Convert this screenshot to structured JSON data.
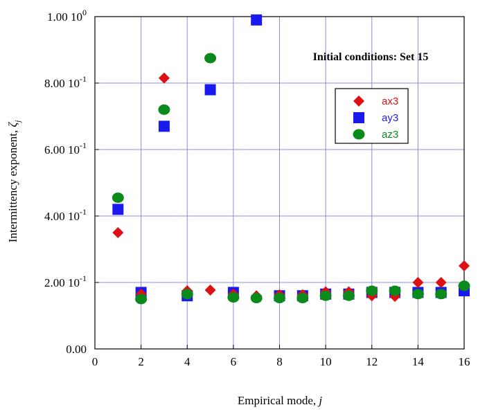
{
  "colors": {
    "ax3": "#dd1111",
    "ay3": "#1a1aee",
    "az3": "#0a8a1a",
    "grid": "#8c8ce6",
    "frame": "#000000"
  },
  "chart_data": {
    "type": "scatter",
    "title": "",
    "xlabel_text": "Empirical mode, ",
    "xlabel_var": "j",
    "ylabel_text": "Intermittency exponent, ",
    "ylabel_var": "ζ",
    "ylabel_sub": "j",
    "annotation": "Initial conditions: Set 15",
    "xlim": [
      0,
      16
    ],
    "ylim": [
      0,
      1.0
    ],
    "grid": true,
    "legend_position": "right",
    "x_ticks": [
      0,
      2,
      4,
      6,
      8,
      10,
      12,
      14,
      16
    ],
    "x_tick_labels": [
      "0",
      "2",
      "4",
      "6",
      "8",
      "10",
      "12",
      "14",
      "16"
    ],
    "y_ticks": [
      {
        "value": 0.0,
        "mantissa": "0.00",
        "exponent": ""
      },
      {
        "value": 0.2,
        "mantissa": "2.00 10",
        "exponent": "-1"
      },
      {
        "value": 0.4,
        "mantissa": "4.00 10",
        "exponent": "-1"
      },
      {
        "value": 0.6,
        "mantissa": "6.00 10",
        "exponent": "-1"
      },
      {
        "value": 0.8,
        "mantissa": "8.00 10",
        "exponent": "-1"
      },
      {
        "value": 1.0,
        "mantissa": "1.00 10",
        "exponent": "0"
      }
    ],
    "series": [
      {
        "name": "ax3",
        "marker": "diamond",
        "color": "#dd1111",
        "x": [
          1,
          2,
          3,
          4,
          5,
          6,
          7,
          8,
          9,
          10,
          11,
          12,
          13,
          14,
          15,
          16
        ],
        "y": [
          0.35,
          0.165,
          0.815,
          0.175,
          0.177,
          0.165,
          0.16,
          0.163,
          0.163,
          0.172,
          0.172,
          0.16,
          0.158,
          0.2,
          0.2,
          0.25
        ]
      },
      {
        "name": "ay3",
        "marker": "square",
        "color": "#1a1aee",
        "x": [
          1,
          2,
          3,
          4,
          5,
          6,
          7,
          8,
          9,
          10,
          11,
          12,
          13,
          14,
          15,
          16
        ],
        "y": [
          0.42,
          0.17,
          0.67,
          0.16,
          0.78,
          0.17,
          0.99,
          0.16,
          0.16,
          0.165,
          0.165,
          0.17,
          0.17,
          0.17,
          0.17,
          0.175
        ]
      },
      {
        "name": "az3",
        "marker": "circle",
        "color": "#0a8a1a",
        "x": [
          1,
          2,
          3,
          4,
          5,
          6,
          7,
          8,
          9,
          10,
          11,
          12,
          13,
          14,
          15,
          16
        ],
        "y": [
          0.455,
          0.15,
          0.72,
          0.165,
          0.875,
          0.155,
          0.153,
          0.153,
          0.153,
          0.16,
          0.16,
          0.175,
          0.175,
          0.165,
          0.165,
          0.19
        ]
      }
    ]
  }
}
